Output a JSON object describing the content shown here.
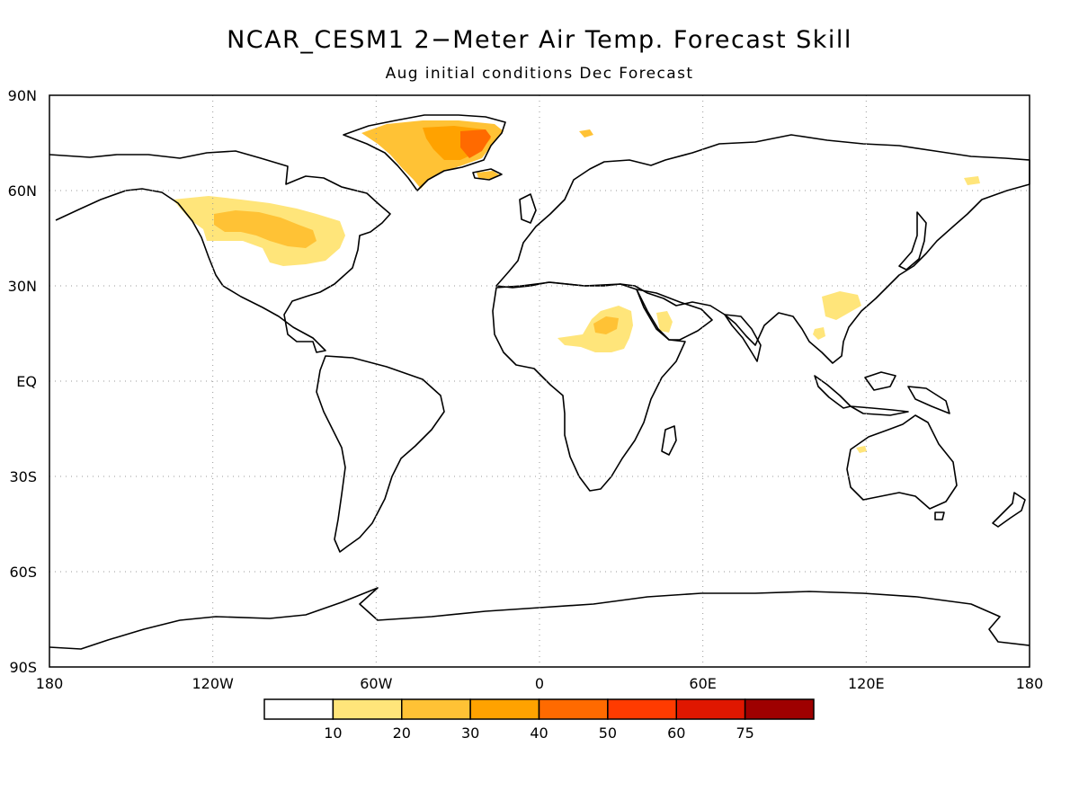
{
  "title": "NCAR_CESM1 2−Meter Air Temp. Forecast Skill",
  "subtitle": "Aug initial conditions  Dec Forecast",
  "y_ticks": [
    "90N",
    "60N",
    "30N",
    "EQ",
    "30S",
    "60S",
    "90S"
  ],
  "x_ticks": [
    "180",
    "120W",
    "60W",
    "0",
    "60E",
    "120E",
    "180"
  ],
  "colorbar": {
    "colors": [
      "#ffffff",
      "#ffe57a",
      "#ffc235",
      "#ffa200",
      "#ff6a00",
      "#ff3b00",
      "#e01700",
      "#9e0000"
    ],
    "labels": [
      "10",
      "20",
      "30",
      "40",
      "50",
      "60",
      "75"
    ]
  },
  "skill_regions": [
    {
      "name": "north-america",
      "level": "10-20"
    },
    {
      "name": "great-lakes",
      "level": "20-30"
    },
    {
      "name": "greenland",
      "level": "20-40"
    },
    {
      "name": "greenland-east-coast",
      "level": "40-50"
    },
    {
      "name": "iceland",
      "level": "20-30"
    },
    {
      "name": "svalbard",
      "level": "20-30"
    },
    {
      "name": "sahel-north-africa",
      "level": "10-20"
    },
    {
      "name": "arabia",
      "level": "10-20"
    },
    {
      "name": "south-china",
      "level": "10-20"
    },
    {
      "name": "southeast-asia",
      "level": "10-20"
    },
    {
      "name": "kamchatka",
      "level": "10-20"
    },
    {
      "name": "western-australia",
      "level": "10-20"
    }
  ]
}
